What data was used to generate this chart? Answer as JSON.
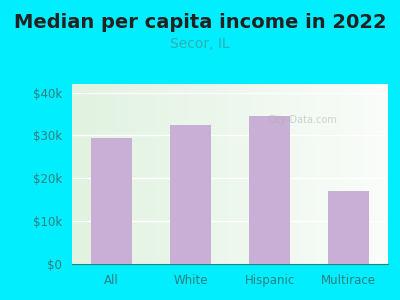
{
  "title": "Median per capita income in 2022",
  "subtitle": "Secor, IL",
  "categories": [
    "All",
    "White",
    "Hispanic",
    "Multirace"
  ],
  "values": [
    29500,
    32500,
    34500,
    17000
  ],
  "bar_color": "#c9aed6",
  "title_fontsize": 14,
  "subtitle_fontsize": 10,
  "subtitle_color": "#2ab0b0",
  "title_color": "#222222",
  "bg_outer": "#00eeff",
  "ylim": [
    0,
    42000
  ],
  "yticks": [
    0,
    10000,
    20000,
    30000,
    40000
  ],
  "ytick_labels": [
    "$0",
    "$10k",
    "$20k",
    "$30k",
    "$40k"
  ],
  "watermark": "City-Data.com",
  "tick_color": "#2a8080"
}
